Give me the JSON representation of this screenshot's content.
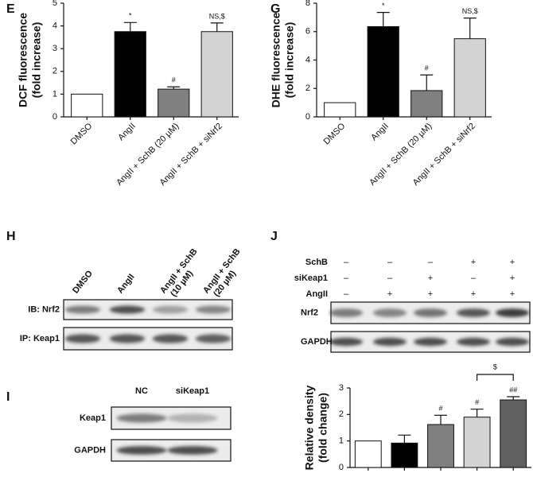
{
  "chart_data": [
    {
      "type": "bar",
      "label": "E",
      "ylabel": [
        "DCF fluorescence",
        "(fold increase)"
      ],
      "categories": [
        "DMSO",
        "AngII",
        "AngII + SchB (20 µM)",
        "AngII + SchB + siNrf2"
      ],
      "values": [
        1,
        3.75,
        1.22,
        3.75
      ],
      "errors": [
        null,
        0.4,
        0.1,
        0.38
      ],
      "annotations": [
        null,
        "*",
        "#",
        "NS,$"
      ],
      "colors": [
        "#ffffff",
        "#000000",
        "#808080",
        "#d3d3d3"
      ],
      "ylim": [
        0,
        5
      ],
      "yticks": [
        0,
        1,
        2,
        3,
        4,
        5
      ]
    },
    {
      "type": "bar",
      "label": "G",
      "ylabel": [
        "DHE fluorescence",
        "(fold increase)"
      ],
      "categories": [
        "DMSO",
        "AngII",
        "AngII + SchB (20 µM)",
        "AngII + SchB + siNrf2"
      ],
      "values": [
        1,
        6.35,
        1.85,
        5.5
      ],
      "errors": [
        null,
        1.0,
        1.1,
        1.45
      ],
      "annotations": [
        null,
        "*",
        "#",
        "NS,$"
      ],
      "colors": [
        "#ffffff",
        "#000000",
        "#808080",
        "#d3d3d3"
      ],
      "ylim": [
        0,
        8
      ],
      "yticks": [
        0,
        2,
        4,
        6,
        8
      ]
    },
    {
      "type": "bar",
      "ylabel": [
        "Relative density",
        "(fold change)"
      ],
      "values": [
        1,
        0.92,
        1.62,
        1.9,
        2.55
      ],
      "errors": [
        null,
        0.3,
        0.35,
        0.3,
        0.12
      ],
      "annotations": [
        null,
        null,
        "#",
        "#",
        "##"
      ],
      "colors": [
        "#ffffff",
        "#000000",
        "#808080",
        "#d3d3d3",
        "#606060"
      ],
      "bracket": {
        "label": "$"
      },
      "ylim": [
        0,
        3
      ],
      "yticks": [
        0,
        1,
        2,
        3
      ]
    }
  ],
  "blots": {
    "H": {
      "label": "H",
      "columns": [
        [
          "DMSO"
        ],
        [
          "AngII"
        ],
        [
          "AngII + SchB",
          "(10 µM)"
        ],
        [
          "AngII + SchB",
          "(20 µM)"
        ]
      ],
      "rows": [
        "IB: Nrf2",
        "IP: Keap1"
      ]
    },
    "J": {
      "label": "J",
      "conditions": [
        {
          "name": "SchB",
          "signs": [
            "–",
            "–",
            "–",
            "+",
            "+"
          ]
        },
        {
          "name": "siKeap1",
          "signs": [
            "–",
            "–",
            "+",
            "–",
            "+"
          ]
        },
        {
          "name": "AngII",
          "signs": [
            "–",
            "+",
            "+",
            "+",
            "+"
          ]
        }
      ],
      "rows": [
        "Nrf2",
        "GAPDH"
      ]
    },
    "I": {
      "label": "I",
      "columns": [
        "NC",
        "siKeap1"
      ],
      "rows": [
        "Keap1",
        "GAPDH"
      ]
    }
  }
}
